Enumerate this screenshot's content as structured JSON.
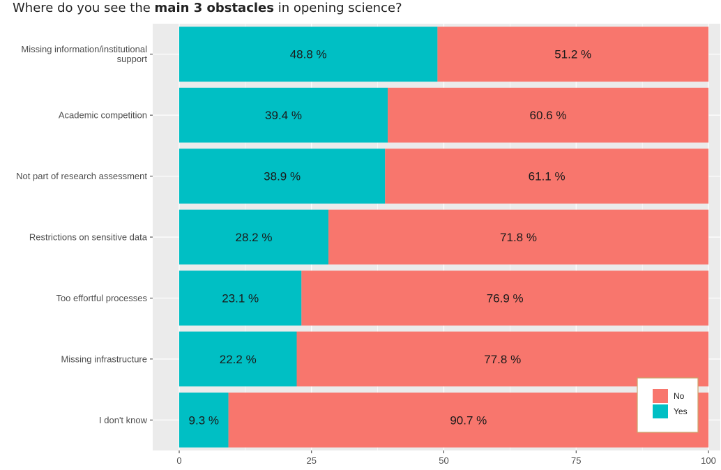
{
  "title": {
    "prefix": "Where do you see the ",
    "bold": "main 3 obstacles",
    "suffix": " in opening science?"
  },
  "chart_data": {
    "type": "bar",
    "orientation": "horizontal",
    "stacked": true,
    "categories": [
      [
        "Missing information/institutional",
        "support"
      ],
      [
        "Academic competition"
      ],
      [
        "Not part of research assessment"
      ],
      [
        "Restrictions on sensitive data"
      ],
      [
        "Too effortful processes"
      ],
      [
        "Missing infrastructure"
      ],
      [
        "I don't know"
      ]
    ],
    "series": [
      {
        "name": "Yes",
        "color": "#00BFC4",
        "values": [
          48.8,
          39.4,
          38.9,
          28.2,
          23.1,
          22.2,
          9.3
        ]
      },
      {
        "name": "No",
        "color": "#F8766D",
        "values": [
          51.2,
          60.6,
          61.1,
          71.8,
          76.9,
          77.8,
          90.7
        ]
      }
    ],
    "value_labels": {
      "Yes": [
        "48.8 %",
        "39.4 %",
        "38.9 %",
        "28.2 %",
        "23.1 %",
        "22.2 %",
        "9.3 %"
      ],
      "No": [
        "51.2 %",
        "60.6 %",
        "61.1 %",
        "71.8 %",
        "76.9 %",
        "77.8 %",
        "90.7 %"
      ]
    },
    "xlim": [
      0,
      100
    ],
    "xticks": [
      0,
      25,
      50,
      75,
      100
    ],
    "xlabel": "",
    "ylabel": "",
    "grid": true,
    "legend": {
      "placement": "bottom-right",
      "order": [
        "No",
        "Yes"
      ]
    },
    "panel_background": "#EBEBEB",
    "grid_color": "#FFFFFF"
  }
}
